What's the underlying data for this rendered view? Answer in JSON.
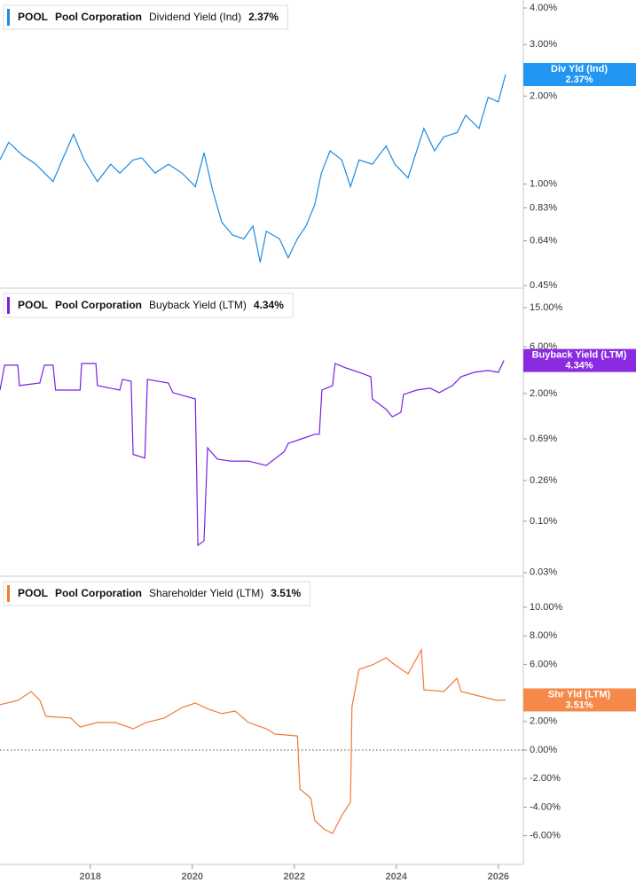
{
  "chart_data": [
    {
      "type": "line",
      "ticker": "POOL",
      "company": "Pool Corporation",
      "badge": "Div Yld (Ind)",
      "latest": {
        "value": 2.37,
        "label": "2.37%"
      },
      "log_scale": true,
      "x": [
        2016.23,
        2016.4,
        2016.66,
        2016.93,
        2017.27,
        2017.45,
        2017.67,
        2017.88,
        2018.14,
        2018.4,
        2018.58,
        2018.84,
        2019.01,
        2019.27,
        2019.53,
        2019.8,
        2020.06,
        2020.23,
        2020.4,
        2020.58,
        2020.79,
        2021.01,
        2021.19,
        2021.33,
        2021.45,
        2021.71,
        2021.88,
        2022.06,
        2022.23,
        2022.4,
        2022.53,
        2022.7,
        2022.93,
        2023.1,
        2023.27,
        2023.53,
        2023.8,
        2023.97,
        2024.23,
        2024.4,
        2024.54,
        2024.75,
        2024.93,
        2025.19,
        2025.36,
        2025.62,
        2025.8,
        2026.0,
        2026.14
      ],
      "series": [
        {
          "name": "Dividend Yield (Ind)",
          "color": "#1a8be3",
          "values": [
            1.21,
            1.39,
            1.26,
            1.17,
            1.02,
            1.21,
            1.48,
            1.21,
            1.02,
            1.17,
            1.09,
            1.21,
            1.23,
            1.09,
            1.17,
            1.09,
            0.98,
            1.28,
            0.95,
            0.74,
            0.67,
            0.65,
            0.72,
            0.54,
            0.69,
            0.65,
            0.56,
            0.65,
            0.72,
            0.85,
            1.09,
            1.3,
            1.21,
            0.98,
            1.21,
            1.17,
            1.35,
            1.17,
            1.05,
            1.3,
            1.55,
            1.3,
            1.45,
            1.5,
            1.72,
            1.55,
            1.98,
            1.91,
            2.37
          ]
        }
      ],
      "badge_color": "#2196f3",
      "xlim": [
        2016.23,
        2026.49
      ],
      "ylim": [
        0.441,
        4.26
      ],
      "yticks": [
        {
          "value": 4,
          "label": "4.00%"
        },
        {
          "value": 3,
          "label": "3.00%"
        },
        {
          "value": 2,
          "label": "2.00%"
        },
        {
          "value": 1,
          "label": "1.00%"
        },
        {
          "value": 0.83,
          "label": "0.83%"
        },
        {
          "value": 0.64,
          "label": "0.64%"
        },
        {
          "value": 0.45,
          "label": "0.45%"
        }
      ]
    },
    {
      "type": "line",
      "ticker": "POOL",
      "company": "Pool Corporation",
      "badge": "Buyback Yield (LTM)",
      "latest": {
        "value": 4.34,
        "label": "4.34%"
      },
      "log_scale": true,
      "x": [
        2016.23,
        2016.32,
        2016.58,
        2016.61,
        2017.01,
        2017.1,
        2017.27,
        2017.32,
        2017.8,
        2017.83,
        2018.11,
        2018.14,
        2018.58,
        2018.63,
        2018.8,
        2018.84,
        2019.07,
        2019.12,
        2019.53,
        2019.62,
        2020.06,
        2020.11,
        2020.23,
        2020.3,
        2020.49,
        2020.75,
        2021.1,
        2021.45,
        2021.8,
        2021.88,
        2022.14,
        2022.4,
        2022.49,
        2022.54,
        2022.75,
        2022.8,
        2023.01,
        2023.27,
        2023.5,
        2023.53,
        2023.8,
        2023.92,
        2024.09,
        2024.14,
        2024.4,
        2024.66,
        2024.84,
        2025.1,
        2025.27,
        2025.53,
        2025.8,
        2026.0,
        2026.11
      ],
      "series": [
        {
          "name": "Buyback Yield (LTM)",
          "color": "#7b1fe0",
          "values": [
            2.17,
            3.89,
            3.89,
            2.41,
            2.56,
            3.89,
            3.89,
            2.17,
            2.17,
            4.05,
            4.05,
            2.41,
            2.17,
            2.79,
            2.67,
            0.48,
            0.44,
            2.79,
            2.56,
            2.04,
            1.76,
            0.057,
            0.063,
            0.56,
            0.43,
            0.41,
            0.41,
            0.37,
            0.51,
            0.62,
            0.69,
            0.77,
            0.77,
            2.17,
            2.41,
            4.05,
            3.65,
            3.29,
            2.97,
            1.76,
            1.38,
            1.16,
            1.29,
            1.96,
            2.17,
            2.27,
            2.04,
            2.41,
            2.97,
            3.29,
            3.43,
            3.29,
            4.34
          ]
        }
      ],
      "badge_color": "#8a2be2",
      "xlim": [
        2016.23,
        2026.49
      ],
      "ylim": [
        0.0275,
        23.7
      ],
      "yticks": [
        {
          "value": 15,
          "label": "15.00%"
        },
        {
          "value": 6,
          "label": "6.00%"
        },
        {
          "value": 2,
          "label": "2.00%"
        },
        {
          "value": 0.69,
          "label": "0.69%"
        },
        {
          "value": 0.26,
          "label": "0.26%"
        },
        {
          "value": 0.1,
          "label": "0.10%"
        },
        {
          "value": 0.03,
          "label": "0.03%"
        }
      ]
    },
    {
      "type": "line",
      "ticker": "POOL",
      "company": "Pool Corporation",
      "badge": "Shr Yld (LTM)",
      "latest": {
        "value": 3.51,
        "label": "3.51%"
      },
      "log_scale": false,
      "zero_line": true,
      "x": [
        2016.23,
        2016.58,
        2016.84,
        2017.01,
        2017.13,
        2017.62,
        2017.8,
        2018.14,
        2018.49,
        2018.84,
        2019.1,
        2019.45,
        2019.8,
        2020.06,
        2020.32,
        2020.58,
        2020.84,
        2021.1,
        2021.45,
        2021.62,
        2022.06,
        2022.11,
        2022.32,
        2022.4,
        2022.58,
        2022.75,
        2022.93,
        2023.1,
        2023.13,
        2023.27,
        2023.53,
        2023.8,
        2023.97,
        2024.23,
        2024.49,
        2024.54,
        2024.93,
        2025.19,
        2025.27,
        2025.62,
        2025.97,
        2026.14
      ],
      "series": [
        {
          "name": "Shareholder Yield (LTM)",
          "color": "#f07a36",
          "values": [
            3.17,
            3.48,
            4.1,
            3.48,
            2.36,
            2.24,
            1.61,
            1.93,
            1.93,
            1.49,
            1.93,
            2.24,
            2.98,
            3.29,
            2.86,
            2.55,
            2.73,
            1.93,
            1.49,
            1.12,
            0.99,
            -2.73,
            -3.35,
            -4.91,
            -5.53,
            -5.84,
            -4.6,
            -3.66,
            3.04,
            5.65,
            5.96,
            6.46,
            5.96,
            5.34,
            7.02,
            4.22,
            4.1,
            5.03,
            4.1,
            3.79,
            3.48,
            3.51
          ]
        }
      ],
      "badge_color": "#f5894a",
      "xlim": [
        2016.23,
        2026.49
      ],
      "ylim": [
        -8.01,
        12.17
      ],
      "yticks": [
        {
          "value": 10,
          "label": "10.00%"
        },
        {
          "value": 8,
          "label": "8.00%"
        },
        {
          "value": 6,
          "label": "6.00%"
        },
        {
          "value": 4,
          "label": "4.00%"
        },
        {
          "value": 2,
          "label": "2.00%"
        },
        {
          "value": 0,
          "label": "0.00%"
        },
        {
          "value": -2,
          "label": "-2.00%"
        },
        {
          "value": -4,
          "label": "-4.00%"
        },
        {
          "value": -6,
          "label": "-6.00%"
        }
      ],
      "xticks": [
        2018,
        2020,
        2022,
        2024,
        2026
      ]
    }
  ]
}
